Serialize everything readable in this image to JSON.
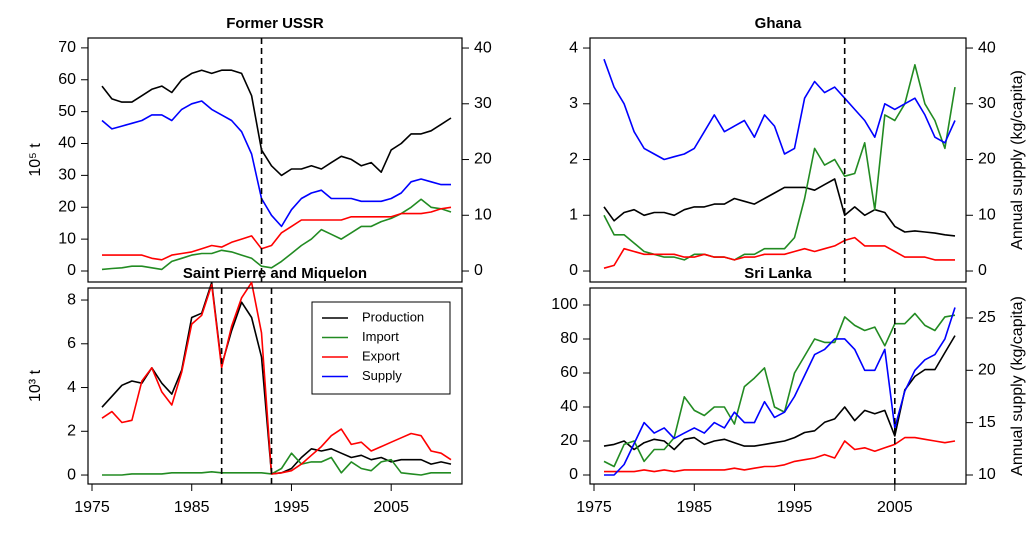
{
  "chart_data": [
    {
      "type": "line",
      "title": "Former USSR",
      "ylabel": "10⁵ t",
      "x": [
        1976,
        1977,
        1978,
        1979,
        1980,
        1981,
        1982,
        1983,
        1984,
        1985,
        1986,
        1987,
        1988,
        1989,
        1990,
        1991,
        1992,
        1993,
        1994,
        1995,
        1996,
        1997,
        1998,
        1999,
        2000,
        2001,
        2002,
        2003,
        2004,
        2005,
        2006,
        2007,
        2008,
        2009,
        2010,
        2011
      ],
      "xlim": [
        1974.6,
        2012.1
      ],
      "ylim": [
        -3.45,
        73.1
      ],
      "yticks": [
        0,
        10,
        20,
        30,
        40,
        50,
        60,
        70
      ],
      "y2lim": [
        -1.97,
        41.8
      ],
      "y2ticks": [
        0,
        10,
        20,
        30,
        40
      ],
      "vlines": [
        1992
      ],
      "series": [
        {
          "name": "Production",
          "color": "#000000",
          "values": [
            58,
            54,
            53,
            53,
            55,
            57,
            58,
            56,
            60,
            62,
            63,
            62,
            63,
            63,
            62,
            55,
            38,
            33,
            30,
            32,
            32,
            33,
            32,
            34,
            36,
            35,
            33,
            34,
            31,
            38,
            40,
            43,
            43,
            44,
            46,
            48
          ]
        },
        {
          "name": "Import",
          "color": "#228b22",
          "values": [
            0.5,
            0.8,
            1,
            1.5,
            1.5,
            1,
            0.5,
            3,
            4,
            5,
            5.5,
            5.5,
            6.5,
            6,
            5,
            4,
            1.5,
            1,
            3,
            5.5,
            8,
            10,
            13,
            11.5,
            10,
            12,
            14,
            14,
            15.5,
            16.5,
            18,
            20,
            22.5,
            20,
            19.5,
            18.5
          ]
        },
        {
          "name": "Export",
          "color": "#ff0000",
          "values": [
            5,
            5,
            5,
            5,
            5,
            4,
            3.5,
            5,
            5.5,
            6,
            7,
            8,
            7.5,
            9,
            10,
            11,
            7,
            8,
            12,
            14,
            16,
            16,
            16,
            16,
            16,
            17,
            17,
            17,
            17,
            17,
            18,
            18,
            18,
            18.5,
            19.5,
            20
          ]
        },
        {
          "name": "Supply",
          "color": "#0000ff",
          "axis": "y2",
          "values": [
            27,
            25.5,
            26,
            26.5,
            27,
            28,
            28,
            27,
            29,
            30,
            30.5,
            29,
            28,
            27,
            25,
            21,
            13,
            10,
            8,
            11,
            13,
            14,
            14.5,
            13,
            13,
            13,
            12.5,
            12.5,
            12.5,
            13,
            14,
            16,
            16.5,
            16,
            15.5,
            15.5
          ]
        }
      ]
    },
    {
      "type": "line",
      "title": "Ghana",
      "y2label": "Annual supply (kg/capita)",
      "x": [
        1976,
        1977,
        1978,
        1979,
        1980,
        1981,
        1982,
        1983,
        1984,
        1985,
        1986,
        1987,
        1988,
        1989,
        1990,
        1991,
        1992,
        1993,
        1994,
        1995,
        1996,
        1997,
        1998,
        1999,
        2000,
        2001,
        2002,
        2003,
        2004,
        2005,
        2006,
        2007,
        2008,
        2009,
        2010,
        2011
      ],
      "xlim": [
        1974.6,
        2012.1
      ],
      "ylim": [
        -0.197,
        4.18
      ],
      "yticks": [
        0,
        1,
        2,
        3,
        4
      ],
      "y2lim": [
        -1.97,
        41.8
      ],
      "y2ticks": [
        0,
        10,
        20,
        30,
        40
      ],
      "vlines": [
        2000
      ],
      "series": [
        {
          "name": "Production",
          "color": "#000000",
          "values": [
            1.15,
            0.9,
            1.05,
            1.1,
            1.0,
            1.05,
            1.05,
            1.0,
            1.1,
            1.15,
            1.15,
            1.2,
            1.2,
            1.3,
            1.25,
            1.2,
            1.3,
            1.4,
            1.5,
            1.5,
            1.5,
            1.45,
            1.55,
            1.65,
            1.0,
            1.15,
            1.0,
            1.1,
            1.05,
            0.8,
            0.7,
            0.72,
            0.7,
            0.68,
            0.65,
            0.63
          ]
        },
        {
          "name": "Import",
          "color": "#228b22",
          "values": [
            1.0,
            0.65,
            0.65,
            0.5,
            0.35,
            0.3,
            0.25,
            0.25,
            0.2,
            0.3,
            0.3,
            0.25,
            0.25,
            0.2,
            0.3,
            0.3,
            0.4,
            0.4,
            0.4,
            0.6,
            1.3,
            2.2,
            1.9,
            2.0,
            1.7,
            1.75,
            2.3,
            1.1,
            2.8,
            2.7,
            3.0,
            3.7,
            3.0,
            2.7,
            2.2,
            3.3
          ]
        },
        {
          "name": "Export",
          "color": "#ff0000",
          "values": [
            0.05,
            0.1,
            0.4,
            0.35,
            0.3,
            0.3,
            0.3,
            0.3,
            0.25,
            0.25,
            0.3,
            0.25,
            0.25,
            0.2,
            0.25,
            0.25,
            0.3,
            0.3,
            0.3,
            0.35,
            0.4,
            0.35,
            0.4,
            0.45,
            0.55,
            0.6,
            0.45,
            0.45,
            0.45,
            0.35,
            0.25,
            0.25,
            0.25,
            0.2,
            0.2,
            0.2
          ]
        },
        {
          "name": "Supply",
          "color": "#0000ff",
          "axis": "y2",
          "values": [
            38,
            33,
            30,
            25,
            22,
            21,
            20,
            20.5,
            21,
            22,
            25,
            28,
            25,
            26,
            27,
            24,
            28,
            26,
            21,
            22,
            31,
            34,
            32,
            33,
            31,
            29,
            27,
            24,
            30,
            29,
            30,
            31,
            28,
            24,
            23,
            27
          ]
        }
      ]
    },
    {
      "type": "line",
      "title": "Saint Pierre and Miquelon",
      "ylabel": "10³ t",
      "legend": "upper right",
      "x": [
        1976,
        1977,
        1978,
        1979,
        1980,
        1981,
        1982,
        1983,
        1984,
        1985,
        1986,
        1987,
        1988,
        1989,
        1990,
        1991,
        1992,
        1993,
        1994,
        1995,
        1996,
        1997,
        1998,
        1999,
        2000,
        2001,
        2002,
        2003,
        2004,
        2005,
        2006,
        2007,
        2008,
        2009,
        2010,
        2011
      ],
      "xlim": [
        1974.6,
        2012.1
      ],
      "xticks": [
        1975,
        1985,
        1995,
        2005
      ],
      "ylim": [
        -0.41,
        8.55
      ],
      "yticks": [
        0,
        2,
        4,
        6,
        8
      ],
      "vlines": [
        1988,
        1993
      ],
      "series": [
        {
          "name": "Production",
          "color": "#000000",
          "values": [
            3.1,
            3.6,
            4.1,
            4.3,
            4.2,
            4.9,
            4.2,
            3.7,
            4.8,
            7.2,
            7.4,
            8.8,
            5.0,
            6.6,
            7.9,
            7.2,
            5.4,
            0.05,
            0.1,
            0.3,
            0.8,
            1.2,
            1.1,
            1.2,
            1.0,
            0.8,
            0.9,
            0.7,
            0.8,
            0.6,
            0.7,
            0.7,
            0.7,
            0.5,
            0.6,
            0.5
          ]
        },
        {
          "name": "Import",
          "color": "#228b22",
          "values": [
            0,
            0,
            0,
            0.05,
            0.05,
            0.05,
            0.05,
            0.1,
            0.1,
            0.1,
            0.1,
            0.15,
            0.1,
            0.1,
            0.1,
            0.1,
            0.1,
            0.05,
            0.3,
            1.0,
            0.5,
            0.6,
            0.6,
            0.8,
            0.1,
            0.6,
            0.3,
            0.2,
            0.6,
            0.7,
            0.1,
            0.05,
            0,
            0.1,
            0.1,
            0.1
          ]
        },
        {
          "name": "Export",
          "color": "#ff0000",
          "values": [
            2.6,
            2.9,
            2.4,
            2.5,
            4.3,
            4.9,
            3.8,
            3.2,
            4.7,
            6.9,
            7.3,
            8.7,
            4.9,
            6.8,
            8.1,
            8.8,
            6.5,
            0.05,
            0.1,
            0.2,
            0.5,
            0.9,
            1.3,
            1.8,
            2.1,
            1.4,
            1.5,
            1.1,
            1.3,
            1.5,
            1.7,
            1.9,
            1.8,
            1.1,
            1.0,
            0.7
          ]
        },
        {
          "name": "Supply",
          "color": "#0000ff",
          "values": [
            null,
            null,
            null,
            null,
            null,
            null,
            null,
            null,
            null,
            null,
            null,
            null,
            null,
            null,
            null,
            null,
            null,
            null,
            null,
            null,
            null,
            null,
            null,
            null,
            null,
            null,
            null,
            null,
            null,
            null,
            null,
            null,
            null,
            null,
            null,
            null
          ]
        }
      ]
    },
    {
      "type": "line",
      "title": "Sri Lanka",
      "y2label": "Annual supply (kg/capita)",
      "x": [
        1976,
        1977,
        1978,
        1979,
        1980,
        1981,
        1982,
        1983,
        1984,
        1985,
        1986,
        1987,
        1988,
        1989,
        1990,
        1991,
        1992,
        1993,
        1994,
        1995,
        1996,
        1997,
        1998,
        1999,
        2000,
        2001,
        2002,
        2003,
        2004,
        2005,
        2006,
        2007,
        2008,
        2009,
        2010,
        2011
      ],
      "xlim": [
        1974.6,
        2012.1
      ],
      "xticks": [
        1975,
        1985,
        1995,
        2005
      ],
      "ylim": [
        -5.3,
        110
      ],
      "yticks": [
        0,
        20,
        40,
        60,
        80,
        100
      ],
      "y2lim": [
        9.14,
        27.86
      ],
      "y2ticks": [
        10,
        15,
        20,
        25
      ],
      "vlines": [
        2005
      ],
      "series": [
        {
          "name": "Production",
          "color": "#000000",
          "values": [
            17,
            18,
            20,
            15,
            19,
            21,
            20,
            15,
            21,
            22,
            18,
            20,
            21,
            19,
            17,
            17,
            18,
            19,
            20,
            22,
            25,
            26,
            31,
            33,
            40,
            32,
            38,
            36,
            38,
            23,
            50,
            58,
            62,
            62,
            72,
            82
          ]
        },
        {
          "name": "Import",
          "color": "#228b22",
          "values": [
            8,
            5,
            18,
            20,
            8,
            15,
            15,
            22,
            46,
            38,
            35,
            40,
            40,
            30,
            52,
            57,
            63,
            40,
            37,
            60,
            70,
            80,
            78,
            78,
            93,
            88,
            85,
            87,
            76,
            89,
            89,
            95,
            88,
            85,
            93,
            94
          ]
        },
        {
          "name": "Export",
          "color": "#ff0000",
          "values": [
            2,
            2,
            2,
            2,
            3,
            2,
            3,
            2,
            3,
            3,
            3,
            3,
            3,
            4,
            3,
            4,
            5,
            5,
            6,
            8,
            9,
            10,
            12,
            10,
            20,
            15,
            16,
            14,
            16,
            18,
            22,
            22,
            21,
            20,
            19,
            20
          ]
        },
        {
          "name": "Supply",
          "color": "#0000ff",
          "axis": "y2",
          "values": [
            10,
            10,
            11,
            13,
            15,
            14,
            14.5,
            13.5,
            14,
            14.5,
            14,
            15,
            14.5,
            16,
            15,
            15,
            17,
            15.5,
            16,
            17.5,
            19.5,
            21.5,
            22,
            23,
            23,
            22,
            20,
            20,
            22,
            14.5,
            18,
            20,
            21,
            21.5,
            23,
            26
          ]
        }
      ]
    }
  ]
}
